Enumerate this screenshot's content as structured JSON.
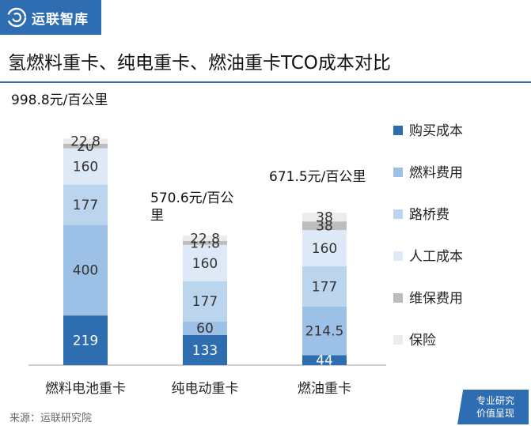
{
  "header": {
    "brand": "运联智库",
    "title": "氢燃料重卡、纯电重卡、燃油重卡TCO成本对比",
    "source": "来源：运联研究院",
    "stamp_line1": "专业研究",
    "stamp_line2": "价值呈现"
  },
  "chart_data": {
    "type": "bar",
    "stacked": true,
    "categories": [
      "燃料电池重卡",
      "纯电动重卡",
      "燃油重卡"
    ],
    "totals": [
      "998.8元/百公里",
      "570.6元/百公里",
      "671.5元/百公里"
    ],
    "series": [
      {
        "name": "购买成本",
        "color": "#2e6db0",
        "values": [
          219,
          133,
          44
        ]
      },
      {
        "name": "燃料费用",
        "color": "#9dc0e6",
        "values": [
          400,
          60,
          214.5
        ]
      },
      {
        "name": "路桥费",
        "color": "#bcd5ef",
        "values": [
          177,
          177,
          177
        ]
      },
      {
        "name": "人工成本",
        "color": "#dde9f6",
        "values": [
          160,
          160,
          160
        ]
      },
      {
        "name": "维保费用",
        "color": "#bdbdbd",
        "values": [
          20,
          17.8,
          38
        ]
      },
      {
        "name": "保险",
        "color": "#ececec",
        "values": [
          22.8,
          22.8,
          38
        ]
      }
    ],
    "legend": "right",
    "grid": false
  }
}
